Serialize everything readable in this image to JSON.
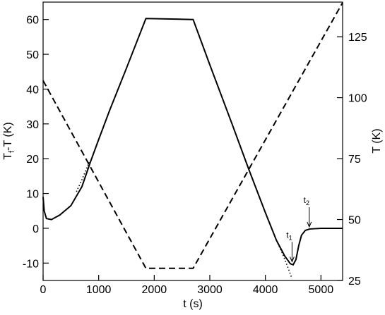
{
  "chart_data": {
    "type": "line",
    "x_label": "t (s)",
    "y_label": {
      "main": "T",
      "sub": "f",
      "rest": "-T (K)"
    },
    "y2_label": "T (K)",
    "xlim": [
      0,
      5390
    ],
    "xticks": [
      0,
      1000,
      2000,
      3000,
      4000,
      5000
    ],
    "ylim": [
      -15,
      65
    ],
    "yticks": [
      -10,
      0,
      10,
      20,
      30,
      40,
      50,
      60
    ],
    "y2lim": [
      25,
      139.2
    ],
    "y2ticks": [
      25,
      50,
      75,
      100,
      125
    ],
    "series": [
      {
        "color": "#000000",
        "style": "solid",
        "axis": "y",
        "x": [
          0,
          20,
          60,
          150,
          300,
          500,
          700,
          850,
          1000,
          1200,
          1500,
          1850,
          2700,
          3000,
          3400,
          3700,
          4000,
          4200,
          4350,
          4450,
          4500,
          4550,
          4600,
          4650,
          4720,
          4800,
          5000,
          5390
        ],
        "values": [
          9,
          5,
          2.8,
          2.5,
          3.8,
          6.5,
          12,
          19,
          25.5,
          34,
          46,
          60.3,
          60,
          47,
          30,
          17,
          4.5,
          -3.5,
          -8,
          -10.2,
          -10.5,
          -9,
          -5,
          -2,
          -0.6,
          -0.2,
          0,
          0
        ]
      },
      {
        "color": "#000000",
        "style": "dotted",
        "axis": "y",
        "x": [
          600,
          700,
          830
        ],
        "values": [
          10.5,
          14,
          19
        ]
      },
      {
        "color": "#000000",
        "style": "dotted",
        "axis": "y",
        "x": [
          4200,
          4300,
          4400,
          4480
        ],
        "values": [
          -3.5,
          -7,
          -11,
          -14.5
        ]
      },
      {
        "color": "#000000",
        "style": "dashed",
        "axis": "y2",
        "x": [
          0,
          1850,
          2700,
          5390
        ],
        "values": [
          107,
          30,
          30,
          139
        ]
      }
    ],
    "annotations": [
      {
        "text": "t",
        "sub": "1",
        "x": 4480,
        "y": -10
      },
      {
        "text": "t",
        "sub": "2",
        "x": 4790,
        "y": 0
      }
    ]
  }
}
